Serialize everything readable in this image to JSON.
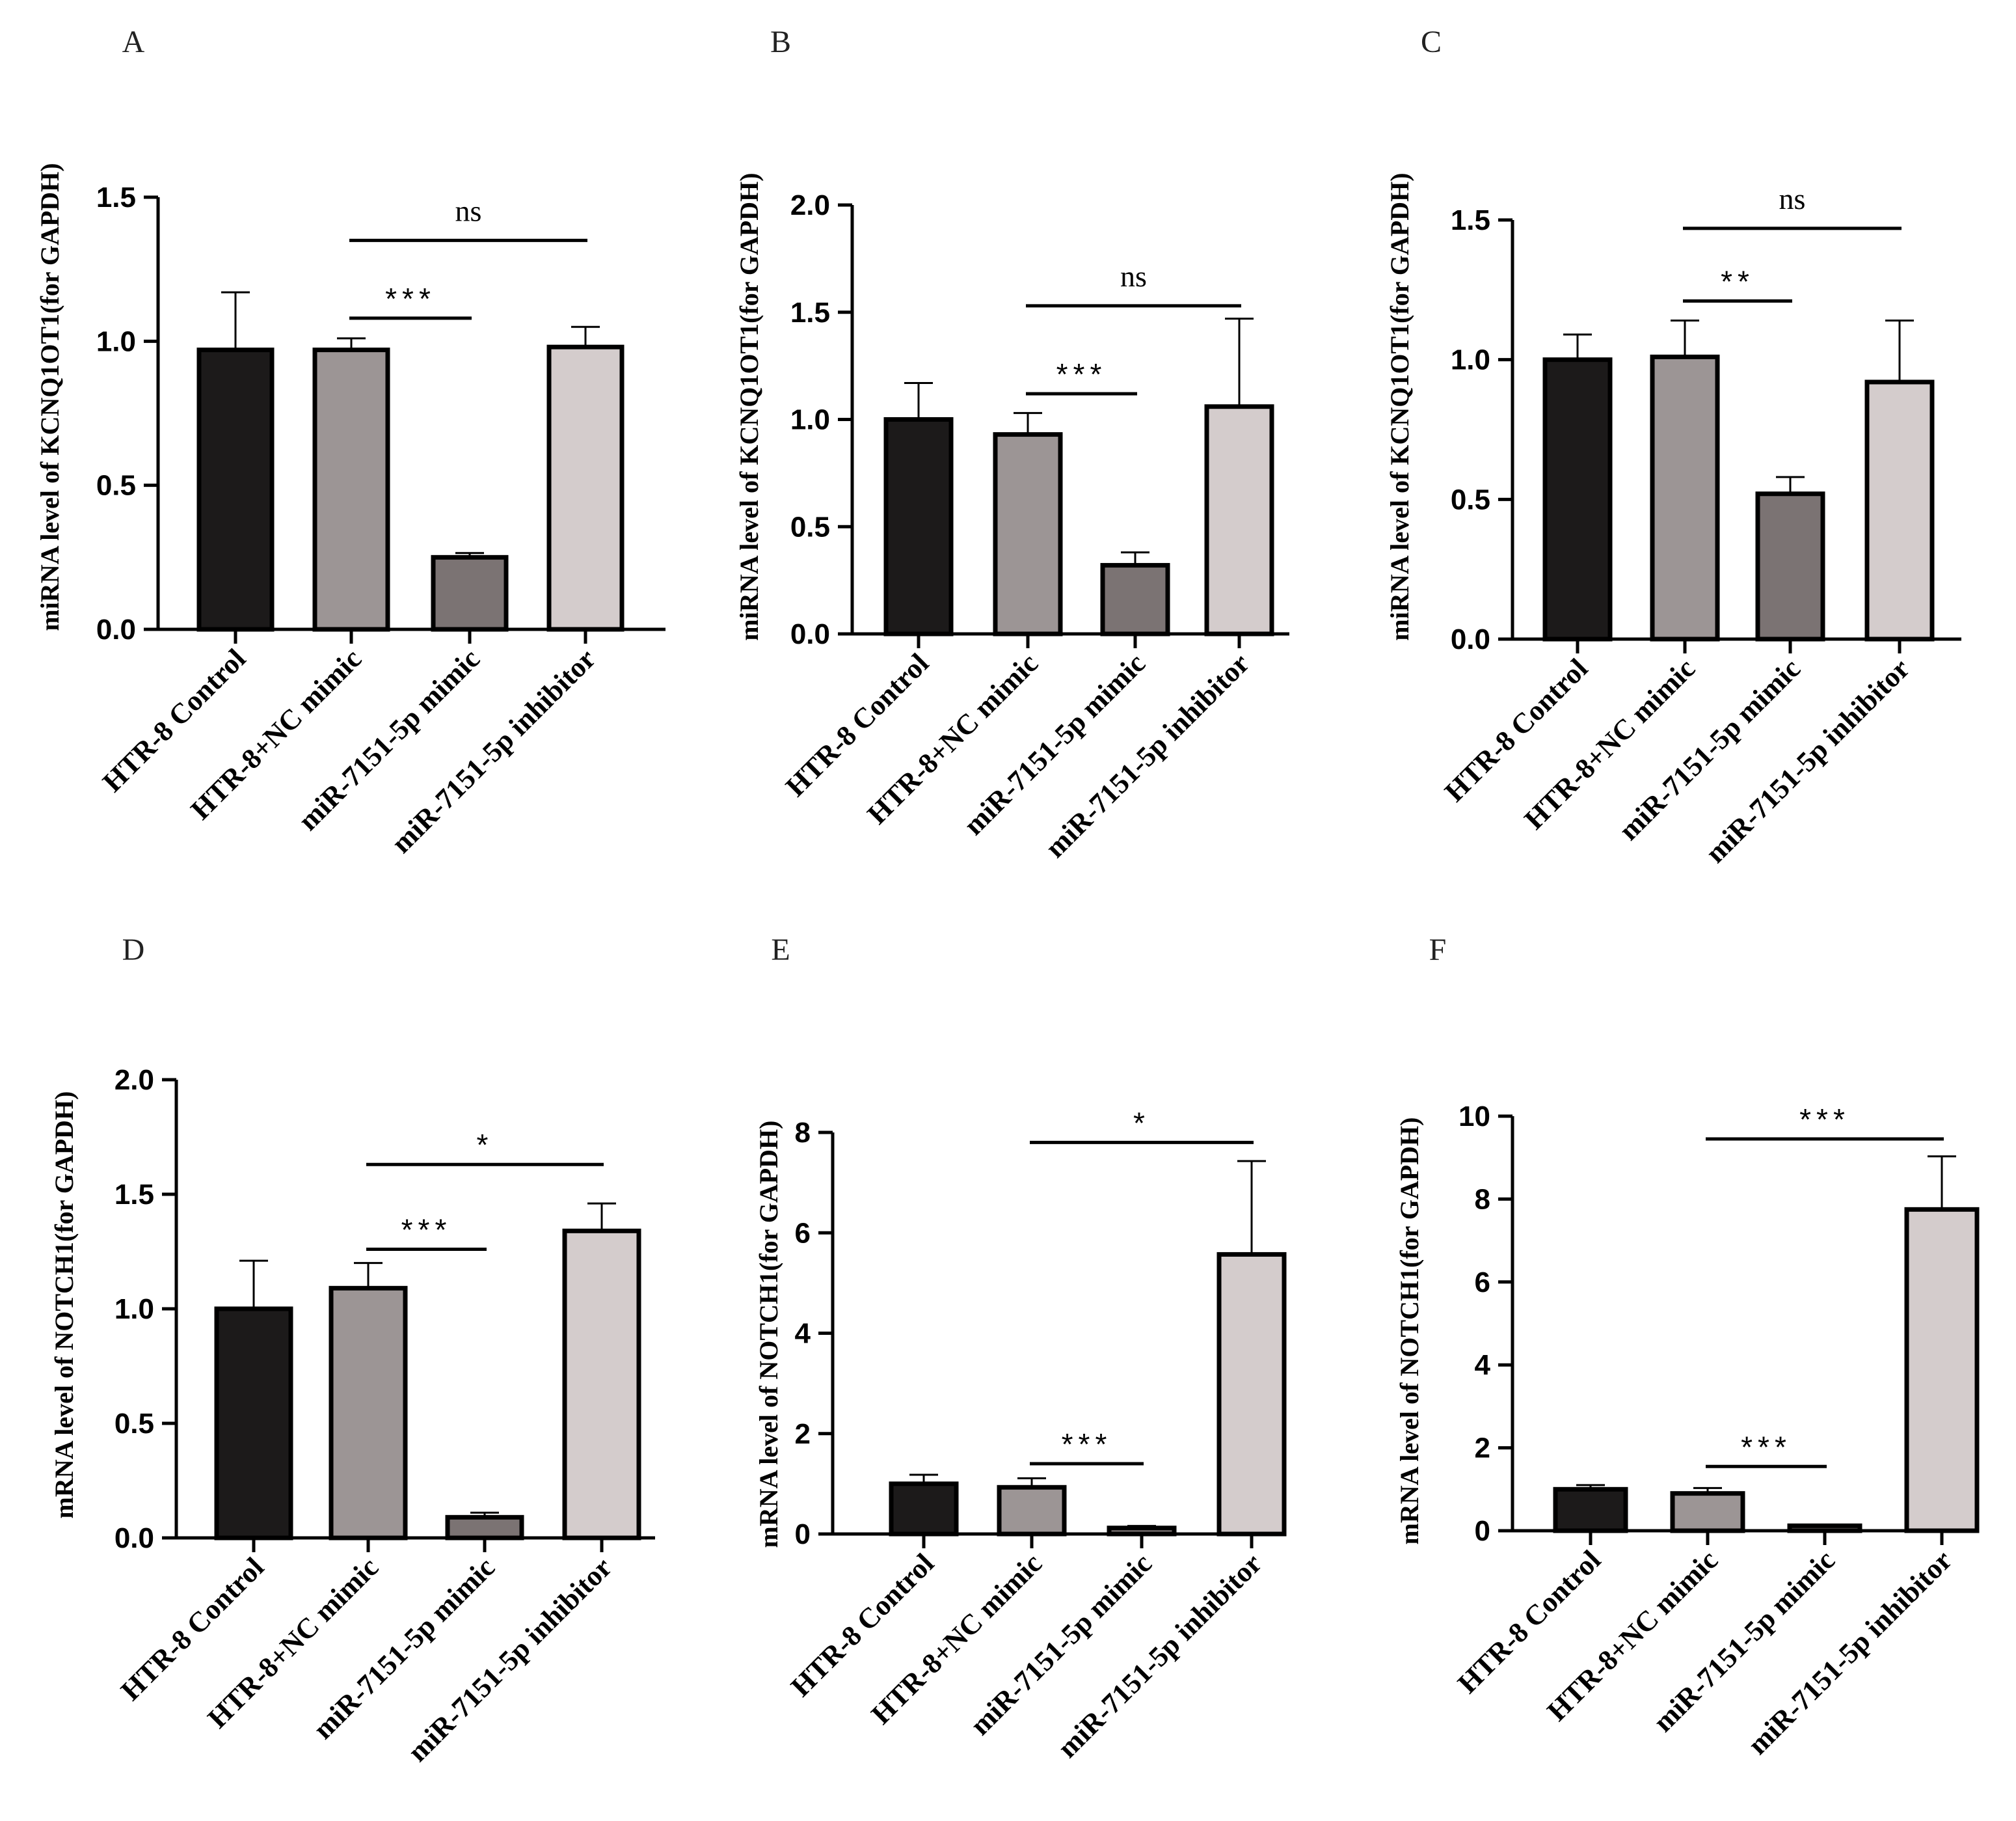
{
  "figure": {
    "groups": [
      "HTR-8 Control",
      "HTR-8+NC mimic",
      "miR-7151-5p mimic",
      "miR-7151-5p inhibitor"
    ],
    "bar_colors": [
      "#1c1a1a",
      "#9c9595",
      "#7b7373",
      "#d4cccc"
    ]
  },
  "chart_data": [
    {
      "panel": "A",
      "type": "bar",
      "ylabel": "miRNA level of  KCNQ1OT1(for GAPDH)",
      "categories": [
        "HTR-8 Control",
        "HTR-8+NC mimic",
        "miR-7151-5p mimic",
        "miR-7151-5p inhibitor"
      ],
      "values": [
        0.97,
        0.97,
        0.25,
        0.98
      ],
      "errors": [
        0.2,
        0.04,
        0.015,
        0.07
      ],
      "ylim": [
        0,
        1.5
      ],
      "yticks": [
        "0.0",
        "0.5",
        "1.0",
        "1.5"
      ],
      "significance": [
        {
          "from": 1,
          "to": 2,
          "label": "***",
          "y": 1.08
        },
        {
          "from": 1,
          "to": 3,
          "label": "ns",
          "y": 1.35
        }
      ]
    },
    {
      "panel": "B",
      "type": "bar",
      "ylabel": "miRNA level of  KCNQ1OT1(for GAPDH)",
      "categories": [
        "HTR-8 Control",
        "HTR-8+NC mimic",
        "miR-7151-5p mimic",
        "miR-7151-5p inhibitor"
      ],
      "values": [
        1.0,
        0.93,
        0.32,
        1.06
      ],
      "errors": [
        0.17,
        0.1,
        0.06,
        0.41
      ],
      "ylim": [
        0,
        2.0
      ],
      "yticks": [
        "0.0",
        "0.5",
        "1.0",
        "1.5",
        "2.0"
      ],
      "significance": [
        {
          "from": 1,
          "to": 2,
          "label": "***",
          "y": 1.12
        },
        {
          "from": 1,
          "to": 3,
          "label": "ns",
          "y": 1.53
        }
      ]
    },
    {
      "panel": "C",
      "type": "bar",
      "ylabel": "miRNA level of  KCNQ1OT1(for GAPDH)",
      "categories": [
        "HTR-8 Control",
        "HTR-8+NC mimic",
        "miR-7151-5p mimic",
        "miR-7151-5p inhibitor"
      ],
      "values": [
        1.0,
        1.01,
        0.52,
        0.92
      ],
      "errors": [
        0.09,
        0.13,
        0.06,
        0.22
      ],
      "ylim": [
        0,
        1.5
      ],
      "yticks": [
        "0.0",
        "0.5",
        "1.0",
        "1.5"
      ],
      "significance": [
        {
          "from": 1,
          "to": 2,
          "label": "**",
          "y": 1.21
        },
        {
          "from": 1,
          "to": 3,
          "label": "ns",
          "y": 1.47
        }
      ]
    },
    {
      "panel": "D",
      "type": "bar",
      "ylabel": "mRNA level of  NOTCH1(for GAPDH)",
      "categories": [
        "HTR-8 Control",
        "HTR-8+NC mimic",
        "miR-7151-5p mimic",
        "miR-7151-5p inhibitor"
      ],
      "values": [
        1.0,
        1.09,
        0.09,
        1.34
      ],
      "errors": [
        0.21,
        0.11,
        0.02,
        0.12
      ],
      "ylim": [
        0,
        2.0
      ],
      "yticks": [
        "0.0",
        "0.5",
        "1.0",
        "1.5",
        "2.0"
      ],
      "significance": [
        {
          "from": 1,
          "to": 2,
          "label": "***",
          "y": 1.26
        },
        {
          "from": 1,
          "to": 3,
          "label": "*",
          "y": 1.63
        }
      ]
    },
    {
      "panel": "E",
      "type": "bar",
      "ylabel": "mRNA level of  NOTCH1(for GAPDH)",
      "categories": [
        "HTR-8 Control",
        "HTR-8+NC mimic",
        "miR-7151-5p mimic",
        "miR-7151-5p inhibitor"
      ],
      "values": [
        1.0,
        0.93,
        0.12,
        5.57
      ],
      "errors": [
        0.18,
        0.18,
        0.04,
        1.86
      ],
      "ylim": [
        0,
        8
      ],
      "yticks": [
        "0",
        "2",
        "4",
        "6",
        "8"
      ],
      "significance": [
        {
          "from": 1,
          "to": 2,
          "label": "***",
          "y": 1.4
        },
        {
          "from": 1,
          "to": 3,
          "label": "*",
          "y": 7.8
        }
      ]
    },
    {
      "panel": "F",
      "type": "bar",
      "ylabel": "mRNA level of  NOTCH1(for GAPDH)",
      "categories": [
        "HTR-8 Control",
        "HTR-8+NC mimic",
        "miR-7151-5p mimic",
        "miR-7151-5p inhibitor"
      ],
      "values": [
        1.0,
        0.9,
        0.12,
        7.75
      ],
      "errors": [
        0.1,
        0.13,
        0.03,
        1.28
      ],
      "ylim": [
        0,
        10
      ],
      "yticks": [
        "0",
        "2",
        "4",
        "6",
        "8",
        "10"
      ],
      "significance": [
        {
          "from": 1,
          "to": 2,
          "label": "***",
          "y": 1.55
        },
        {
          "from": 1,
          "to": 3,
          "label": "***",
          "y": 9.45
        }
      ]
    }
  ]
}
